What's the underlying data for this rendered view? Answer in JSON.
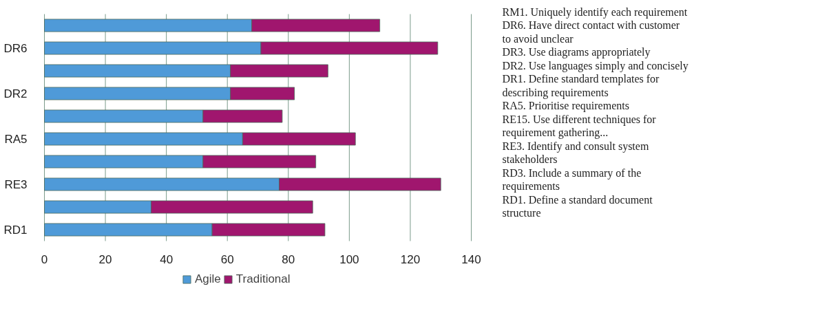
{
  "chart_data": {
    "type": "bar",
    "orientation": "horizontal",
    "stacked": true,
    "categories": [
      null,
      "DR6",
      null,
      "DR2",
      null,
      "RA5",
      null,
      "RE3",
      null,
      "RD1"
    ],
    "series": [
      {
        "name": "Agile",
        "color": "#4f9ad8",
        "values": [
          68,
          71,
          61,
          61,
          52,
          65,
          52,
          77,
          35,
          55
        ]
      },
      {
        "name": "Traditional",
        "color": "#a0166e",
        "values": [
          42,
          58,
          32,
          21,
          26,
          37,
          37,
          53,
          53,
          37
        ]
      }
    ],
    "xlim": [
      0,
      140
    ],
    "xticks": [
      0,
      20,
      40,
      60,
      80,
      100,
      120,
      140
    ],
    "grid": "x",
    "legend": "bottom",
    "annotations": [
      "RM1. Uniquely identify each requirement",
      "DR6. Have direct contact with customer to avoid unclear",
      "DR3. Use diagrams appropriately",
      "DR2. Use languages simply and concisely",
      "DR1. Define standard templates for describing requirements",
      "RA5. Prioritise requirements",
      "RE15. Use different techniques for requirement gathering...",
      "RE3. Identify and consult system stakeholders",
      "RD3. Include a summary of the requirements",
      "RD1. Define a standard document structure"
    ]
  }
}
